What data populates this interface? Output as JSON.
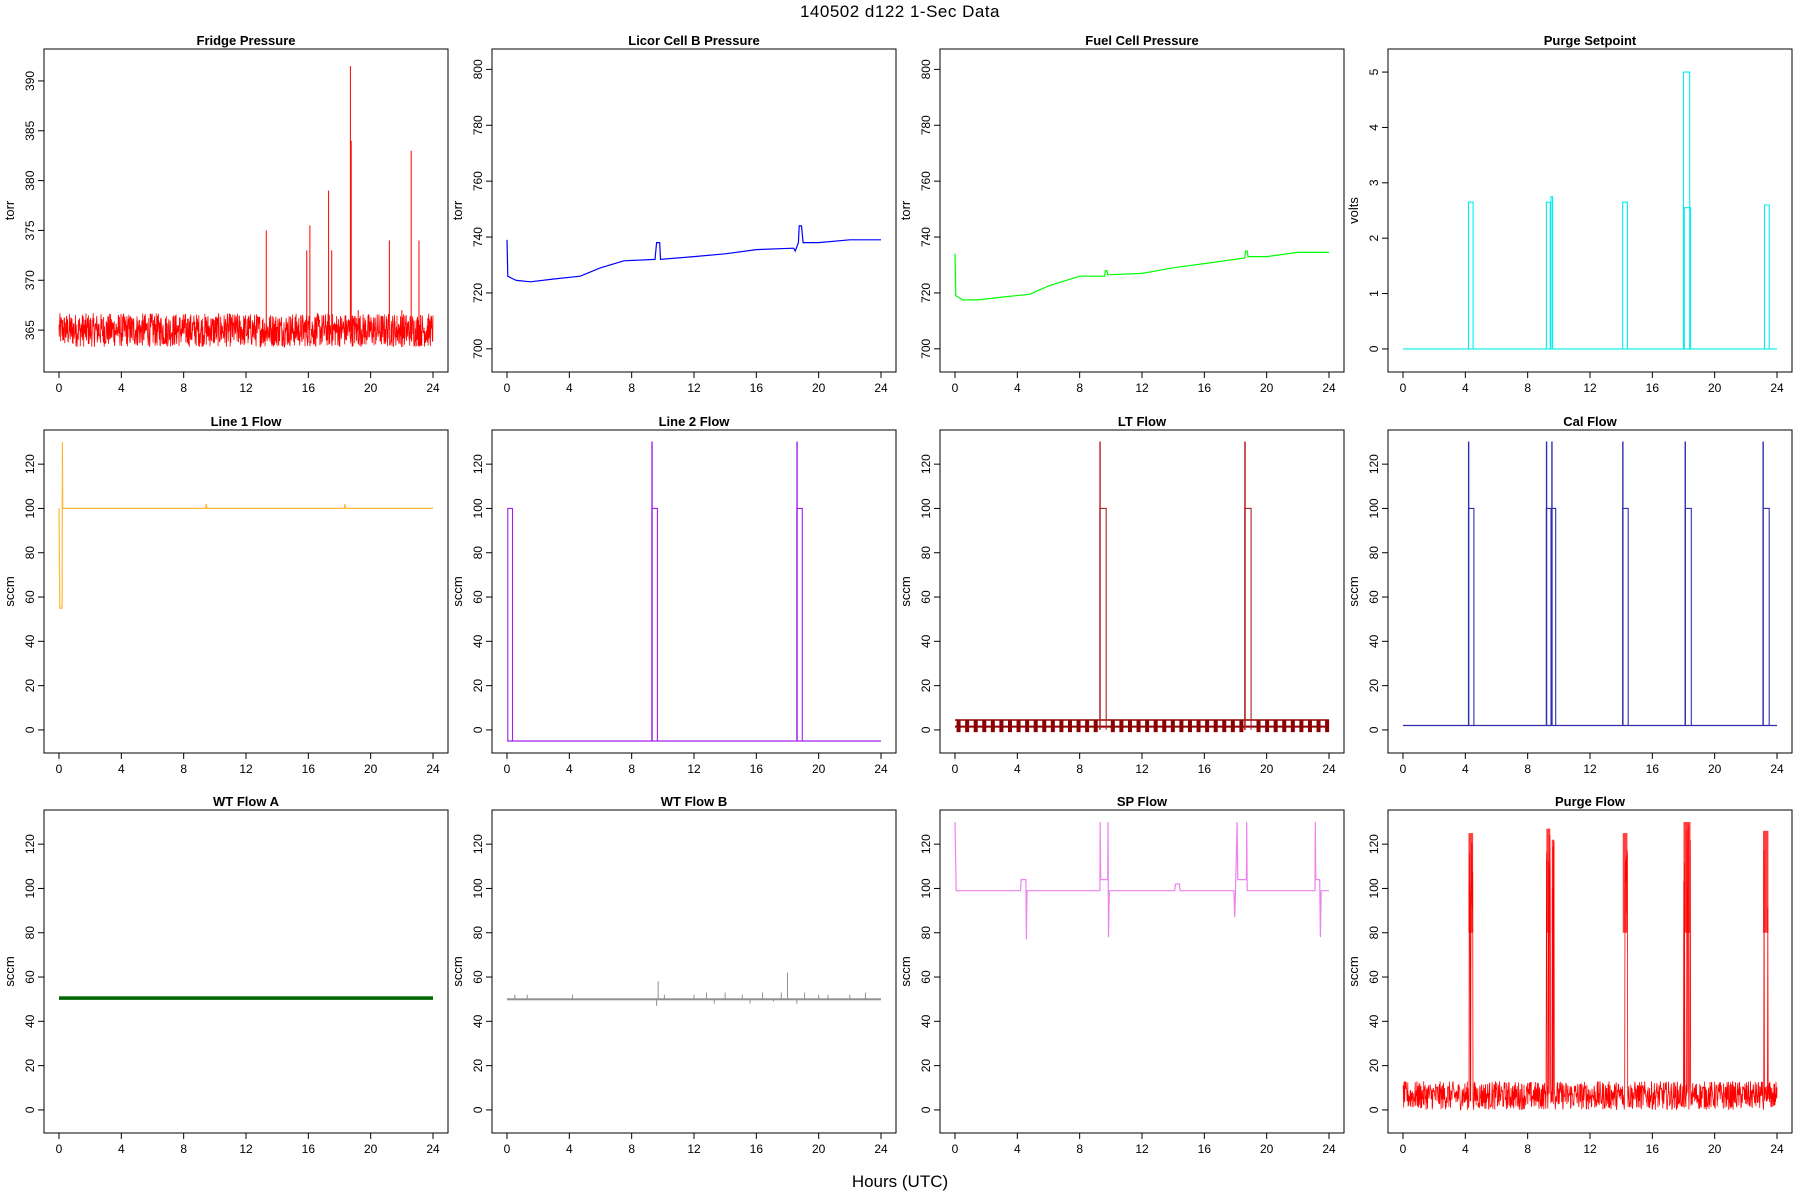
{
  "title": "140502   d122   1-Sec Data",
  "xlabel": "Hours (UTC)",
  "chart_data": [
    {
      "type": "line",
      "title": "Fridge Pressure",
      "ylabel": "torr",
      "color": "#ff0000",
      "xlim": [
        0,
        24
      ],
      "ylim": [
        362,
        392
      ],
      "yticks": [
        365,
        370,
        375,
        380,
        385,
        390
      ],
      "xticks": [
        0,
        4,
        8,
        12,
        16,
        20,
        24
      ],
      "pattern": "noise",
      "base": 365,
      "amp": 1.7,
      "spikes": [
        [
          13.3,
          375
        ],
        [
          15.9,
          373
        ],
        [
          16.1,
          375.5
        ],
        [
          17.3,
          379
        ],
        [
          17.5,
          373
        ],
        [
          18.7,
          391.5
        ],
        [
          18.75,
          384
        ],
        [
          19.2,
          367
        ],
        [
          21.2,
          374
        ],
        [
          22.0,
          367
        ],
        [
          22.6,
          383
        ],
        [
          23.1,
          374
        ]
      ]
    },
    {
      "type": "line",
      "title": "Licor Cell B Pressure",
      "ylabel": "torr",
      "color": "#0000ff",
      "xlim": [
        0,
        24
      ],
      "ylim": [
        696,
        803
      ],
      "yticks": [
        700,
        720,
        740,
        760,
        780,
        800
      ],
      "xticks": [
        0,
        4,
        8,
        12,
        16,
        20,
        24
      ],
      "pattern": "line",
      "points": [
        [
          0,
          739
        ],
        [
          0.05,
          726
        ],
        [
          0.4,
          725
        ],
        [
          0.6,
          724.5
        ],
        [
          1.5,
          724
        ],
        [
          3,
          725
        ],
        [
          4.7,
          726
        ],
        [
          6,
          729
        ],
        [
          7.5,
          731.5
        ],
        [
          9.5,
          732
        ],
        [
          9.6,
          738
        ],
        [
          9.8,
          738
        ],
        [
          9.85,
          732
        ],
        [
          12,
          733
        ],
        [
          14,
          734
        ],
        [
          16,
          735.5
        ],
        [
          18.4,
          736
        ],
        [
          18.5,
          735
        ],
        [
          18.7,
          738
        ],
        [
          18.75,
          744
        ],
        [
          18.9,
          744
        ],
        [
          19,
          738
        ],
        [
          20,
          738
        ],
        [
          22,
          739
        ],
        [
          24,
          739
        ]
      ]
    },
    {
      "type": "line",
      "title": "Fuel Cell Pressure",
      "ylabel": "torr",
      "color": "#00ff00",
      "xlim": [
        0,
        24
      ],
      "ylim": [
        696,
        803
      ],
      "yticks": [
        700,
        720,
        740,
        760,
        780,
        800
      ],
      "xticks": [
        0,
        4,
        8,
        12,
        16,
        20,
        24
      ],
      "pattern": "line",
      "points": [
        [
          0,
          734
        ],
        [
          0.05,
          719
        ],
        [
          0.5,
          717.5
        ],
        [
          1.5,
          717.5
        ],
        [
          3,
          718.5
        ],
        [
          4.8,
          719.5
        ],
        [
          6,
          722.5
        ],
        [
          8,
          726
        ],
        [
          9.6,
          726
        ],
        [
          9.65,
          728
        ],
        [
          9.75,
          728
        ],
        [
          9.8,
          726.5
        ],
        [
          12,
          727
        ],
        [
          14,
          729
        ],
        [
          16,
          730.5
        ],
        [
          18.6,
          732.5
        ],
        [
          18.65,
          735
        ],
        [
          18.75,
          735
        ],
        [
          18.8,
          733
        ],
        [
          20,
          733
        ],
        [
          22,
          734.5
        ],
        [
          24,
          734.5
        ]
      ]
    },
    {
      "type": "line",
      "title": "Purge Setpoint",
      "ylabel": "volts",
      "color": "#00eeee",
      "xlim": [
        0,
        24
      ],
      "ylim": [
        -0.2,
        5.2
      ],
      "yticks": [
        0,
        1,
        2,
        3,
        4,
        5
      ],
      "xticks": [
        0,
        4,
        8,
        12,
        16,
        20,
        24
      ],
      "pattern": "pulses",
      "base": 0,
      "pulses": [
        [
          4.2,
          4.5,
          2.65
        ],
        [
          9.2,
          9.45,
          2.65
        ],
        [
          9.5,
          9.6,
          2.75
        ],
        [
          14.1,
          14.4,
          2.65
        ],
        [
          18.0,
          18.4,
          5
        ],
        [
          18.05,
          18.45,
          2.55
        ],
        [
          23.2,
          23.5,
          2.6
        ]
      ]
    },
    {
      "type": "line",
      "title": "Line 1 Flow",
      "ylabel": "sccm",
      "color": "#ffb733",
      "xlim": [
        0,
        24
      ],
      "ylim": [
        -5,
        130
      ],
      "yticks": [
        0,
        20,
        40,
        60,
        80,
        100,
        120
      ],
      "xticks": [
        0,
        4,
        8,
        12,
        16,
        20,
        24
      ],
      "pattern": "line",
      "points": [
        [
          0,
          100
        ],
        [
          0.05,
          55
        ],
        [
          0.2,
          55
        ],
        [
          0.22,
          130
        ],
        [
          0.24,
          100
        ],
        [
          9.4,
          100
        ],
        [
          9.45,
          102
        ],
        [
          9.5,
          100
        ],
        [
          18.3,
          100
        ],
        [
          18.35,
          102
        ],
        [
          18.4,
          100
        ],
        [
          24,
          100
        ]
      ]
    },
    {
      "type": "line",
      "title": "Line 2 Flow",
      "ylabel": "sccm",
      "color": "#a020f0",
      "xlim": [
        0,
        24
      ],
      "ylim": [
        -5,
        130
      ],
      "yticks": [
        0,
        20,
        40,
        60,
        80,
        100,
        120
      ],
      "xticks": [
        0,
        4,
        8,
        12,
        16,
        20,
        24
      ],
      "pattern": "pulses",
      "base": -5,
      "pulses": [
        [
          0.05,
          0.35,
          100
        ],
        [
          9.3,
          9.65,
          100
        ],
        [
          9.3,
          9.32,
          130
        ],
        [
          18.6,
          18.95,
          100
        ],
        [
          18.6,
          18.62,
          130
        ]
      ]
    },
    {
      "type": "line",
      "title": "LT Flow",
      "ylabel": "sccm",
      "color": "#b22222",
      "xlim": [
        0,
        24
      ],
      "ylim": [
        -5,
        130
      ],
      "yticks": [
        0,
        20,
        40,
        60,
        80,
        100,
        120
      ],
      "xticks": [
        0,
        4,
        8,
        12,
        16,
        20,
        24
      ],
      "pattern": "lt",
      "base": 0,
      "dark": "#8b0000",
      "pulses": [
        [
          9.3,
          9.7,
          100
        ],
        [
          9.3,
          9.32,
          130
        ],
        [
          18.6,
          19.0,
          100
        ],
        [
          18.6,
          18.62,
          130
        ]
      ],
      "gaps": [
        [
          9.3,
          9.7
        ],
        [
          18.6,
          19.0
        ]
      ]
    },
    {
      "type": "line",
      "title": "Cal Flow",
      "ylabel": "sccm",
      "color": "#2f2fb0",
      "xlim": [
        0,
        24
      ],
      "ylim": [
        -5,
        130
      ],
      "yticks": [
        0,
        20,
        40,
        60,
        80,
        100,
        120
      ],
      "xticks": [
        0,
        4,
        8,
        12,
        16,
        20,
        24
      ],
      "pattern": "pulses",
      "base": 2,
      "pulses": [
        [
          4.2,
          4.55,
          100
        ],
        [
          4.2,
          4.22,
          130
        ],
        [
          9.2,
          9.5,
          100
        ],
        [
          9.2,
          9.22,
          130
        ],
        [
          9.55,
          9.8,
          100
        ],
        [
          9.55,
          9.57,
          130
        ],
        [
          14.1,
          14.45,
          100
        ],
        [
          14.1,
          14.12,
          130
        ],
        [
          18.1,
          18.5,
          100
        ],
        [
          18.1,
          18.12,
          130
        ],
        [
          23.1,
          23.5,
          100
        ],
        [
          23.1,
          23.12,
          130
        ]
      ]
    },
    {
      "type": "line",
      "title": "WT Flow A",
      "ylabel": "sccm",
      "color": "#006400",
      "xlim": [
        0,
        24
      ],
      "ylim": [
        -5,
        130
      ],
      "yticks": [
        0,
        20,
        40,
        60,
        80,
        100,
        120
      ],
      "xticks": [
        0,
        4,
        8,
        12,
        16,
        20,
        24
      ],
      "pattern": "band",
      "base": 50.5,
      "amp": 0.8,
      "spikes": []
    },
    {
      "type": "line",
      "title": "WT Flow B",
      "ylabel": "sccm",
      "color": "#909090",
      "xlim": [
        0,
        24
      ],
      "ylim": [
        -5,
        130
      ],
      "yticks": [
        0,
        20,
        40,
        60,
        80,
        100,
        120
      ],
      "xticks": [
        0,
        4,
        8,
        12,
        16,
        20,
        24
      ],
      "pattern": "band",
      "base": 50,
      "amp": 0.4,
      "spikes": [
        [
          0.5,
          52
        ],
        [
          1.3,
          52
        ],
        [
          4.2,
          52
        ],
        [
          9.6,
          47
        ],
        [
          9.7,
          58
        ],
        [
          10.1,
          52
        ],
        [
          12.0,
          52
        ],
        [
          12.8,
          53
        ],
        [
          13.3,
          48
        ],
        [
          14.0,
          53
        ],
        [
          15.1,
          52
        ],
        [
          15.6,
          48
        ],
        [
          16.4,
          53
        ],
        [
          17.1,
          49
        ],
        [
          17.6,
          53
        ],
        [
          18.0,
          62
        ],
        [
          18.6,
          48
        ],
        [
          19.1,
          53
        ],
        [
          20.0,
          52
        ],
        [
          20.6,
          52
        ],
        [
          22.0,
          52
        ],
        [
          23.0,
          53
        ]
      ]
    },
    {
      "type": "line",
      "title": "SP Flow",
      "ylabel": "sccm",
      "color": "#ee82ee",
      "xlim": [
        0,
        24
      ],
      "ylim": [
        -5,
        130
      ],
      "yticks": [
        0,
        20,
        40,
        60,
        80,
        100,
        120
      ],
      "xticks": [
        0,
        4,
        8,
        12,
        16,
        20,
        24
      ],
      "pattern": "line",
      "points": [
        [
          0,
          130
        ],
        [
          0.08,
          99
        ],
        [
          4.2,
          99
        ],
        [
          4.25,
          104
        ],
        [
          4.55,
          104
        ],
        [
          4.58,
          77
        ],
        [
          4.62,
          99
        ],
        [
          9.3,
          99
        ],
        [
          9.32,
          130
        ],
        [
          9.35,
          104
        ],
        [
          9.8,
          104
        ],
        [
          9.82,
          130
        ],
        [
          9.85,
          78
        ],
        [
          9.9,
          99
        ],
        [
          14.1,
          99
        ],
        [
          14.15,
          102
        ],
        [
          14.4,
          102
        ],
        [
          14.45,
          99
        ],
        [
          17.9,
          99
        ],
        [
          17.95,
          87
        ],
        [
          18.0,
          99
        ],
        [
          18.1,
          130
        ],
        [
          18.15,
          104
        ],
        [
          18.7,
          104
        ],
        [
          18.72,
          130
        ],
        [
          18.75,
          99
        ],
        [
          23.1,
          99
        ],
        [
          23.12,
          130
        ],
        [
          23.15,
          104
        ],
        [
          23.4,
          104
        ],
        [
          23.45,
          78
        ],
        [
          23.5,
          99
        ],
        [
          24,
          99
        ]
      ]
    },
    {
      "type": "line",
      "title": "Purge Flow",
      "ylabel": "sccm",
      "color": "#ff0000",
      "xlim": [
        0,
        24
      ],
      "ylim": [
        -5,
        130
      ],
      "yticks": [
        0,
        20,
        40,
        60,
        80,
        100,
        120
      ],
      "xticks": [
        0,
        4,
        8,
        12,
        16,
        20,
        24
      ],
      "pattern": "purgeflow",
      "base": 0,
      "amp": 12,
      "pulses": [
        [
          4.2,
          4.5,
          125
        ],
        [
          9.2,
          9.45,
          127
        ],
        [
          9.55,
          9.7,
          122
        ],
        [
          14.1,
          14.4,
          125
        ],
        [
          18.0,
          18.45,
          130
        ],
        [
          23.1,
          23.45,
          126
        ]
      ]
    }
  ]
}
